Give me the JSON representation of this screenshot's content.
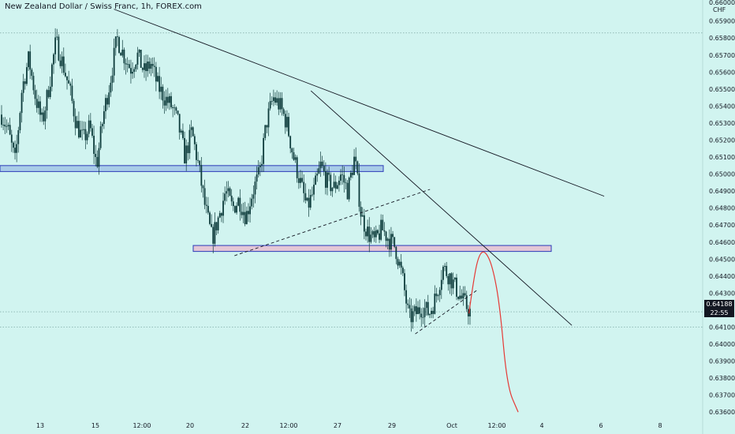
{
  "header": {
    "title": "New Zealand Dollar / Swiss Franc, 1h, FOREX.com"
  },
  "price_axis": {
    "unit": "CHF",
    "current_price": "0.64188",
    "countdown": "22:55"
  },
  "colors": {
    "background": "#d1f4f0",
    "candle": "#0d3b3b",
    "trendline": "#131722",
    "zone_blue_fill": "#a9cde8",
    "zone_blue_border": "#2a3ab8",
    "zone_pink_fill": "#e3c6d6",
    "zone_pink_border": "#2a3ab8",
    "projection": "#e53935",
    "tag_bg": "#131722"
  },
  "chart_data": {
    "type": "candlestick",
    "title": "New Zealand Dollar / Swiss Franc, 1h, FOREX.com",
    "x_tick_labels": [
      "13",
      "15",
      "12:00",
      "20",
      "22",
      "12:00",
      "27",
      "29",
      "Oct",
      "12:00",
      "4",
      "6",
      "8"
    ],
    "y_tick_labels": [
      "0.65900",
      "0.65800",
      "0.65700",
      "0.65600",
      "0.65500",
      "0.65400",
      "0.65300",
      "0.65200",
      "0.65100",
      "0.65000",
      "0.64900",
      "0.64800",
      "0.64700",
      "0.64600",
      "0.64500",
      "0.64400",
      "0.64300",
      "0.64100",
      "0.64000",
      "0.63900",
      "0.63800",
      "0.63700",
      "0.63600"
    ],
    "y_top_partial": "0.66000",
    "ylim": [
      0.6355,
      0.6601
    ],
    "grid": false,
    "price_path": [
      0.6535,
      0.6525,
      0.6507,
      0.655,
      0.6568,
      0.6545,
      0.653,
      0.6552,
      0.6578,
      0.6565,
      0.655,
      0.653,
      0.652,
      0.6528,
      0.6505,
      0.6535,
      0.6555,
      0.658,
      0.657,
      0.6562,
      0.657,
      0.656,
      0.6565,
      0.6552,
      0.6545,
      0.654,
      0.653,
      0.651,
      0.6525,
      0.6505,
      0.648,
      0.6462,
      0.6475,
      0.649,
      0.648,
      0.6485,
      0.6475,
      0.649,
      0.65,
      0.653,
      0.6545,
      0.654,
      0.653,
      0.651,
      0.6495,
      0.648,
      0.649,
      0.6505,
      0.6495,
      0.6492,
      0.65,
      0.649,
      0.651,
      0.6475,
      0.6465,
      0.646,
      0.6468,
      0.6462,
      0.6457,
      0.644,
      0.6415,
      0.6418,
      0.6422,
      0.6418,
      0.6428,
      0.6445,
      0.644,
      0.6432,
      0.6425,
      0.6419
    ],
    "current_price": 0.64188,
    "support_zones": [
      {
        "low": 0.65015,
        "high": 0.6505,
        "color": "blue"
      },
      {
        "low": 0.64545,
        "high": 0.6458,
        "color": "pink"
      }
    ],
    "horizontal_dotted_levels": [
      0.6583,
      0.6419,
      0.641
    ],
    "trendlines": [
      {
        "from": [
          0.155,
          0.6597
        ],
        "to": [
          0.822,
          0.6487
        ],
        "style": "solid"
      },
      {
        "from": [
          0.423,
          0.6549
        ],
        "to": [
          0.778,
          0.6411
        ],
        "style": "solid"
      },
      {
        "from": [
          0.319,
          0.6452
        ],
        "to": [
          0.585,
          0.6491
        ],
        "style": "dashed"
      },
      {
        "from": [
          0.565,
          0.6406
        ],
        "to": [
          0.65,
          0.6432
        ],
        "style": "dashed"
      }
    ],
    "projection_path": [
      [
        0.638,
        0.6418
      ],
      [
        0.645,
        0.644
      ],
      [
        0.652,
        0.6453
      ],
      [
        0.66,
        0.6455
      ],
      [
        0.67,
        0.6446
      ],
      [
        0.68,
        0.6423
      ],
      [
        0.69,
        0.6375
      ],
      [
        0.705,
        0.636
      ]
    ]
  }
}
